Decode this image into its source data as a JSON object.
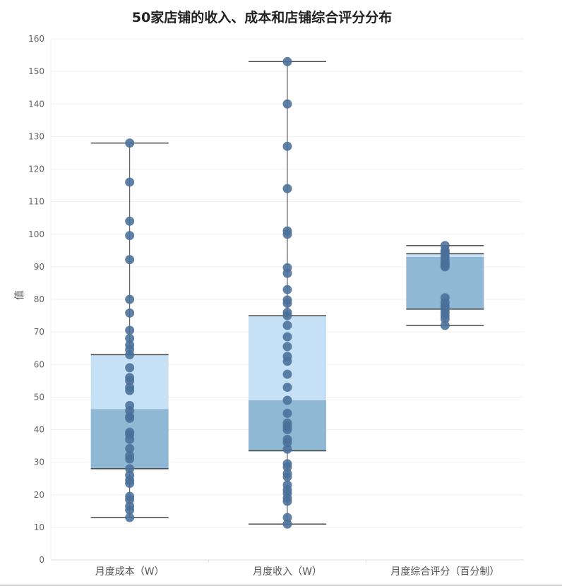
{
  "chart_data": {
    "type": "box",
    "title": "50家店铺的收入、成本和店铺综合评分分布",
    "ylabel": "值",
    "ylim": [
      0,
      160
    ],
    "yticks": [
      0,
      10,
      20,
      30,
      40,
      50,
      60,
      70,
      80,
      90,
      100,
      110,
      120,
      130,
      140,
      150,
      160
    ],
    "grid": true,
    "colors": {
      "upper_box": "#c6e1f5",
      "lower_box": "#8fb8d4",
      "point": "#4a6f9a",
      "whisker": "#444444",
      "grid": "#efefef"
    },
    "categories": [
      "月度成本（W）",
      "月度收入（W）",
      "月度综合评分（百分制）"
    ],
    "boxes": [
      {
        "name": "月度成本（W）",
        "min": 13,
        "q1": 28,
        "median": 46.3,
        "q3": 63,
        "max": 128,
        "points": [
          128,
          116,
          104,
          99.6,
          92.2,
          80,
          75.8,
          70.5,
          68,
          66,
          64.6,
          63,
          59,
          56,
          55,
          53,
          52,
          47.4,
          45.8,
          44,
          43.5,
          39.2,
          38.5,
          37,
          34.2,
          32,
          31,
          28,
          26,
          24.5,
          23.5,
          19.5,
          18.5,
          16.5,
          15.3,
          13
        ]
      },
      {
        "name": "月度收入（W）",
        "min": 11,
        "q1": 33.5,
        "median": 49,
        "q3": 75,
        "max": 153,
        "points": [
          153,
          140,
          127,
          114,
          101,
          100,
          89.7,
          88,
          83,
          79.8,
          78.8,
          76,
          75,
          72,
          68.5,
          65.5,
          62.5,
          61,
          57,
          53,
          49,
          45,
          42,
          41,
          40,
          37,
          36,
          34,
          29.5,
          28.5,
          26.5,
          25.5,
          23,
          21.5,
          20.5,
          19,
          18,
          13,
          11
        ]
      },
      {
        "name": "月度综合评分（百分制）",
        "min": 72,
        "q1": 77,
        "median": 93,
        "q3": 94,
        "max": 96.5,
        "points": [
          96.5,
          95,
          94.5,
          94,
          93,
          92,
          91,
          90.5,
          90,
          80.5,
          79,
          78,
          77,
          76,
          75,
          74,
          72
        ]
      }
    ]
  }
}
